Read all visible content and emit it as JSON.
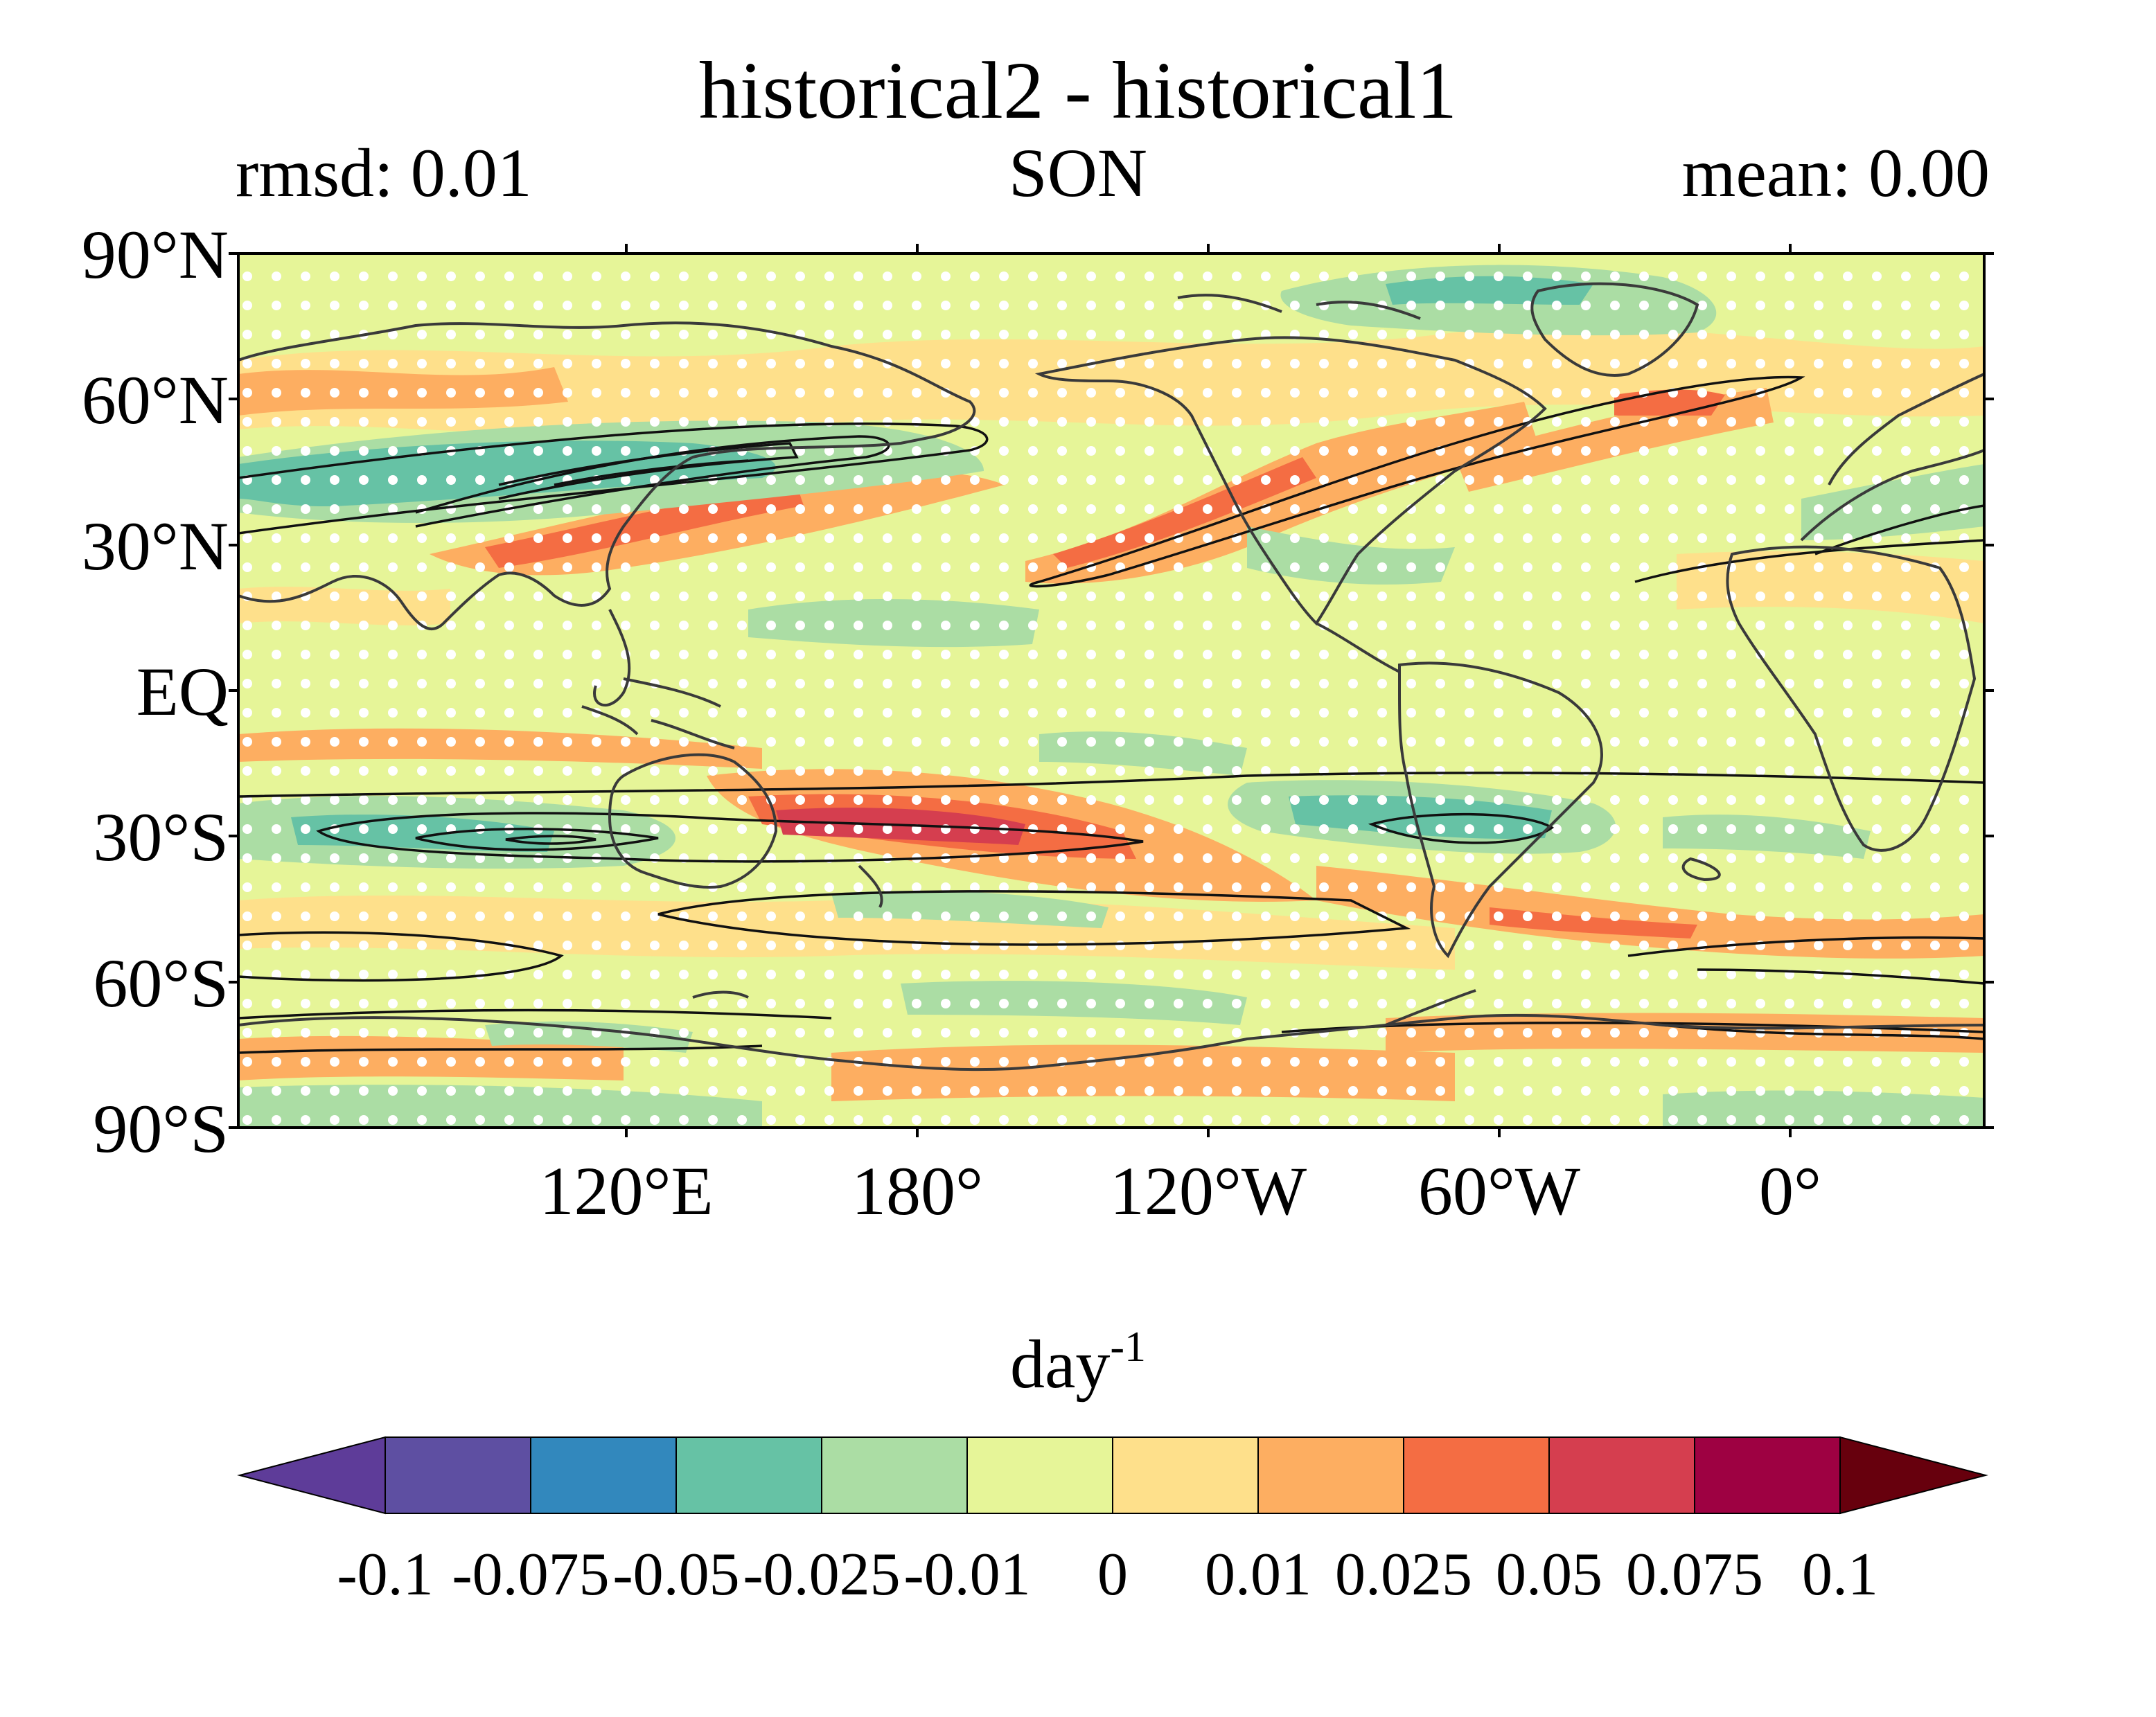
{
  "map": {
    "title": "historical2 - historical1",
    "left_subtitle": "rmsd: 0.01",
    "center_subtitle": "SON",
    "right_subtitle": "mean: 0.00",
    "lat_labels": [
      "90°N",
      "60°N",
      "30°N",
      "EQ",
      "30°S",
      "60°S",
      "90°S"
    ],
    "lon_labels": [
      "120°E",
      "180°",
      "120°W",
      "60°W",
      "0°"
    ],
    "projection": "PlateCarree, central longitude 160°E",
    "stippling": "white dots",
    "contours": "black lines"
  },
  "colorbar": {
    "unit_base": "day",
    "unit_exp": "-1",
    "extend": "both",
    "ticks": [
      "-0.1",
      "-0.075",
      "-0.05",
      "-0.025",
      "-0.01",
      "0",
      "0.01",
      "0.025",
      "0.05",
      "0.075",
      "0.1"
    ],
    "colors": [
      "#5e3c99",
      "#5e4fa2",
      "#3288bd",
      "#66c2a5",
      "#abdda4",
      "#e6f598",
      "#fee08b",
      "#fdae61",
      "#f46d43",
      "#d53e4f",
      "#9e0142",
      "#67000d"
    ]
  }
}
